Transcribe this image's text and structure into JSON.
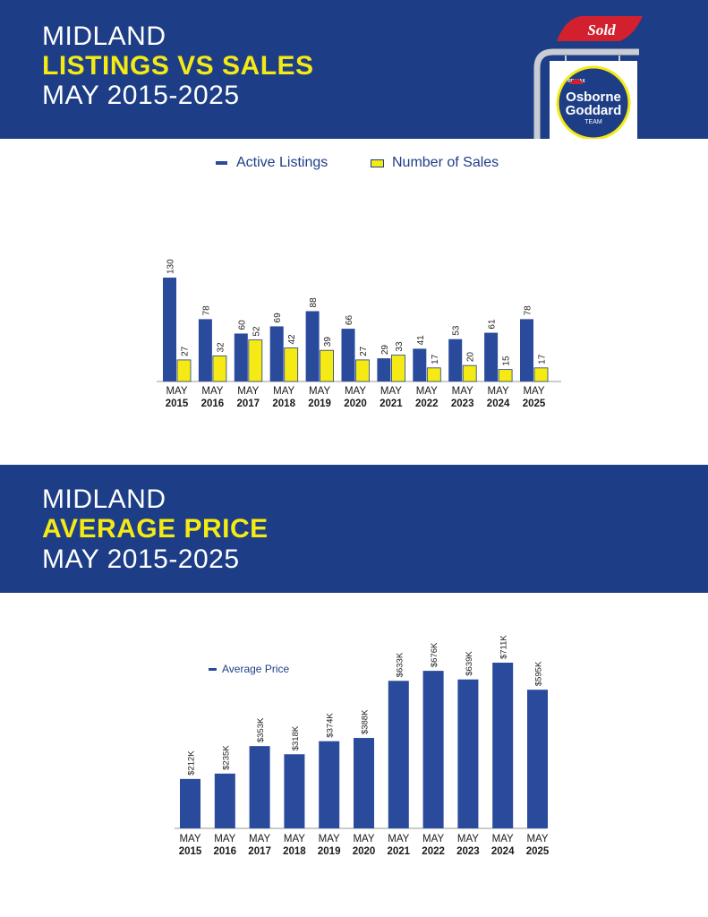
{
  "colors": {
    "navy": "#1d3e86",
    "yellow": "#f5ea14",
    "white": "#ffffff",
    "sold_red": "#d3202e",
    "axis": "#9a9a9a"
  },
  "section1": {
    "title_line1": "MIDLAND",
    "title_line2": "LISTINGS VS SALES",
    "title_line3": "MAY 2015-2025"
  },
  "section2": {
    "title_line1": "MIDLAND",
    "title_line2": "AVERAGE PRICE",
    "title_line3": "MAY 2015-2025"
  },
  "logo": {
    "sold": "Sold",
    "remax": "RE/MAX",
    "name1": "Osborne",
    "name2": "Goddard",
    "team": "TEAM"
  },
  "chart_data": [
    {
      "type": "bar",
      "title": "",
      "categories": [
        [
          "MAY",
          "2015"
        ],
        [
          "MAY",
          "2016"
        ],
        [
          "MAY",
          "2017"
        ],
        [
          "MAY",
          "2018"
        ],
        [
          "MAY",
          "2019"
        ],
        [
          "MAY",
          "2020"
        ],
        [
          "MAY",
          "2021"
        ],
        [
          "MAY",
          "2022"
        ],
        [
          "MAY",
          "2023"
        ],
        [
          "MAY",
          "2024"
        ],
        [
          "MAY",
          "2025"
        ]
      ],
      "series": [
        {
          "name": "Active Listings",
          "color": "#2a4a9c",
          "values": [
            130,
            78,
            60,
            69,
            88,
            66,
            29,
            41,
            53,
            61,
            78
          ]
        },
        {
          "name": "Number of Sales",
          "color": "#f5ea14",
          "values": [
            27,
            32,
            52,
            42,
            39,
            27,
            33,
            17,
            20,
            15,
            17
          ]
        }
      ],
      "ylim": [
        0,
        130
      ],
      "legend": "top-center",
      "grid": false
    },
    {
      "type": "bar",
      "title": "",
      "categories": [
        [
          "MAY",
          "2015"
        ],
        [
          "MAY",
          "2016"
        ],
        [
          "MAY",
          "2017"
        ],
        [
          "MAY",
          "2018"
        ],
        [
          "MAY",
          "2019"
        ],
        [
          "MAY",
          "2020"
        ],
        [
          "MAY",
          "2021"
        ],
        [
          "MAY",
          "2022"
        ],
        [
          "MAY",
          "2023"
        ],
        [
          "MAY",
          "2024"
        ],
        [
          "MAY",
          "2025"
        ]
      ],
      "series": [
        {
          "name": "Average Price",
          "color": "#2a4a9c",
          "values": [
            212,
            235,
            353,
            318,
            374,
            388,
            633,
            676,
            639,
            711,
            595
          ],
          "labels": [
            "$212K",
            "$235K",
            "$353K",
            "$318K",
            "$374K",
            "$388K",
            "$633K",
            "$676K",
            "$639K",
            "$711K",
            "$595K"
          ]
        }
      ],
      "ylim": [
        0,
        711
      ],
      "legend": "top-left",
      "grid": false
    }
  ]
}
